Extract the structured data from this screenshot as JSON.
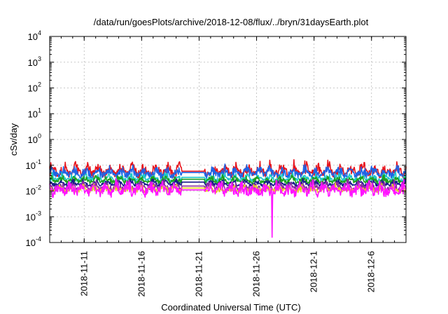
{
  "chart_data": {
    "type": "line",
    "title": "/data/run/goesPlots/archive/2018-12-08/flux/../bryn/31daysEarth.plot",
    "xlabel": "Coordinated Universal Time (UTC)",
    "ylabel": "cSv/day",
    "yscale": "log",
    "ylim": [
      0.0001,
      10000
    ],
    "xlim": [
      0,
      31
    ],
    "x_origin_date": "2018-11-08",
    "y_ticks": [
      {
        "value": 0.0001,
        "base": "10",
        "exp": "-4"
      },
      {
        "value": 0.001,
        "base": "10",
        "exp": "-3"
      },
      {
        "value": 0.01,
        "base": "10",
        "exp": "-2"
      },
      {
        "value": 0.1,
        "base": "10",
        "exp": "-1"
      },
      {
        "value": 1,
        "base": "10",
        "exp": "0"
      },
      {
        "value": 10,
        "base": "10",
        "exp": "1"
      },
      {
        "value": 100,
        "base": "10",
        "exp": "2"
      },
      {
        "value": 1000,
        "base": "10",
        "exp": "3"
      },
      {
        "value": 10000,
        "base": "10",
        "exp": "4"
      }
    ],
    "x_ticks": [
      {
        "day": 3,
        "label": "2018-11-11"
      },
      {
        "day": 8,
        "label": "2018-11-16"
      },
      {
        "day": 13,
        "label": "2018-11-21"
      },
      {
        "day": 18,
        "label": "2018-11-26"
      },
      {
        "day": 23,
        "label": "2018-12-1"
      },
      {
        "day": 28,
        "label": "2018-12-6"
      }
    ],
    "x_minor_ticks_per_day": 1,
    "data_gap": {
      "start_day": 11.5,
      "end_day": 13.5
    },
    "grid": true,
    "series": [
      {
        "name": "red",
        "color": "#e8141c",
        "base": 0.045,
        "amp": 0.45,
        "noise": 0.3,
        "phase": 0.0
      },
      {
        "name": "blue",
        "color": "#1e64e6",
        "base": 0.04,
        "amp": 0.35,
        "noise": 0.25,
        "phase": 0.4
      },
      {
        "name": "cyan",
        "color": "#1fc8c8",
        "base": 0.026,
        "amp": 0.25,
        "noise": 0.18,
        "phase": 0.8
      },
      {
        "name": "green",
        "color": "#1ea01e",
        "base": 0.022,
        "amp": 0.25,
        "noise": 0.15,
        "phase": 1.2
      },
      {
        "name": "dark-blue",
        "color": "#1a1a8c",
        "base": 0.017,
        "amp": 0.2,
        "noise": 0.12,
        "phase": 1.6
      },
      {
        "name": "purple",
        "color": "#8c2ca0",
        "base": 0.012,
        "amp": 0.3,
        "noise": 0.2,
        "phase": 2.0
      },
      {
        "name": "yellow",
        "color": "#e6d21e",
        "base": 0.01,
        "amp": 0.25,
        "noise": 0.18,
        "phase": 2.4
      },
      {
        "name": "magenta",
        "color": "#ff14ff",
        "base": 0.0085,
        "amp": 0.4,
        "noise": 0.35,
        "phase": 2.8,
        "spike": {
          "day": 19.35,
          "value": 0.00016
        }
      }
    ]
  }
}
